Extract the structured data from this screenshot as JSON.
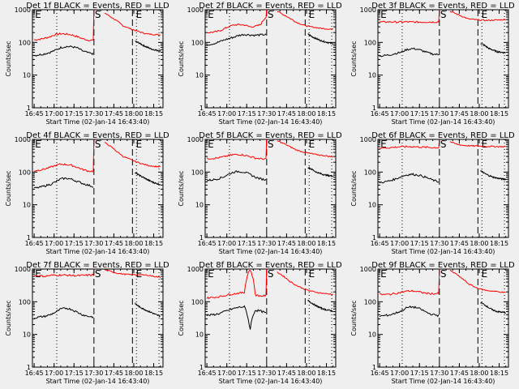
{
  "chart_data": {
    "type": "line",
    "layout": "3x3 grid",
    "shared": {
      "xlabel": "Start Time (02-Jan-14 16:43:40)",
      "ylabel": "Counts/sec",
      "yscale": "log",
      "ylim": [
        1,
        1000
      ],
      "ytick_labels": [
        "1",
        "10",
        "100",
        "1000"
      ],
      "xlim_minutes_after_1645": [
        -1.3,
        97
      ],
      "xtick_labels": [
        "16:45",
        "17:00",
        "17:15",
        "17:30",
        "17:45",
        "18:00",
        "18:15"
      ],
      "series_colors": {
        "events": "#000000",
        "lld": "#ff0000"
      },
      "legend": "encoded in title",
      "markers": [
        {
          "label": "E",
          "time": "16:45",
          "style": "dotted-start"
        },
        {
          "label": "S",
          "time": "17:30",
          "style": "dashed"
        },
        {
          "label": "E",
          "time": "18:01",
          "style": "dotted"
        }
      ],
      "dotted_lines": [
        "17:02",
        "18:02",
        "18:19"
      ],
      "dashed_lines": [
        "17:30",
        "17:59"
      ]
    },
    "panels": [
      {
        "title": "Det 1f BLACK = Events, RED = LLD",
        "events": {
          "pre": [
            40,
            42,
            45,
            50,
            58,
            70,
            75,
            74,
            68,
            55,
            48,
            45
          ],
          "post": [
            110,
            95,
            80,
            70,
            62,
            58,
            55
          ]
        },
        "lld": {
          "pre": [
            120,
            125,
            135,
            150,
            175,
            185,
            180,
            170,
            150,
            130,
            118,
            115
          ],
          "post_start": 1000,
          "post": [
            800,
            600,
            450,
            320,
            270,
            230,
            200,
            180,
            175,
            170
          ]
        }
      },
      {
        "title": "Det 2f BLACK = Events, RED = LLD",
        "events": {
          "pre": [
            85,
            90,
            100,
            115,
            130,
            145,
            165,
            175,
            170,
            165,
            170,
            175
          ],
          "post": [
            180,
            150,
            130,
            115,
            105,
            98,
            92
          ]
        },
        "lld": {
          "pre": [
            200,
            205,
            215,
            250,
            300,
            340,
            350,
            340,
            300,
            310,
            350,
            600
          ],
          "post_start": 1000,
          "post": [
            900,
            700,
            550,
            420,
            350,
            310,
            290,
            270,
            260,
            255
          ]
        }
      },
      {
        "title": "Det 3f BLACK = Events, RED = LLD",
        "events": {
          "pre": [
            38,
            40,
            42,
            46,
            50,
            60,
            65,
            62,
            55,
            48,
            44,
            42
          ],
          "post": [
            95,
            80,
            65,
            58,
            52,
            50,
            48
          ]
        },
        "lld": {
          "pre": [
            420,
            420,
            425,
            420,
            420,
            425,
            420,
            418,
            420,
            422,
            420,
            430
          ],
          "post_start": 1000,
          "post": [
            900,
            750,
            620,
            520,
            500,
            480,
            470,
            480,
            490,
            500
          ]
        }
      },
      {
        "title": "Det 4f BLACK = Events, RED = LLD",
        "events": {
          "pre": [
            32,
            34,
            38,
            42,
            50,
            62,
            65,
            60,
            52,
            45,
            40,
            36
          ],
          "post": [
            95,
            80,
            68,
            58,
            50,
            45,
            42
          ]
        },
        "lld": {
          "pre": [
            110,
            115,
            125,
            140,
            160,
            175,
            170,
            160,
            140,
            120,
            108,
            105
          ],
          "post_start": 1000,
          "post": [
            800,
            600,
            420,
            300,
            250,
            210,
            180,
            160,
            150,
            145
          ]
        }
      },
      {
        "title": "Det 5f BLACK = Events, RED = LLD",
        "events": {
          "pre": [
            55,
            58,
            62,
            70,
            85,
            100,
            105,
            100,
            85,
            70,
            62,
            58
          ],
          "post": [
            140,
            120,
            100,
            90,
            82,
            78,
            75
          ]
        },
        "lld": {
          "pre": [
            260,
            262,
            270,
            290,
            320,
            340,
            345,
            330,
            300,
            270,
            255,
            250
          ],
          "post_start": 1000,
          "post": [
            900,
            750,
            600,
            480,
            420,
            380,
            350,
            330,
            310,
            290
          ]
        }
      },
      {
        "title": "Det 6f BLACK = Events, RED = LLD",
        "events": {
          "pre": [
            48,
            50,
            55,
            62,
            72,
            82,
            86,
            82,
            75,
            65,
            56,
            50
          ],
          "post": [
            110,
            90,
            78,
            70,
            65,
            62,
            60
          ]
        },
        "lld": {
          "pre": [
            550,
            550,
            560,
            580,
            600,
            600,
            600,
            590,
            580,
            570,
            560,
            560
          ],
          "post_start": 1000,
          "post": [
            850,
            720,
            660,
            640,
            630,
            620,
            610,
            610,
            600,
            600
          ]
        }
      },
      {
        "title": "Det 7f BLACK = Events, RED = LLD",
        "events": {
          "pre": [
            32,
            34,
            36,
            40,
            48,
            60,
            64,
            58,
            48,
            40,
            36,
            34
          ],
          "post": [
            88,
            70,
            60,
            52,
            46,
            40,
            36
          ]
        },
        "lld": {
          "pre": [
            620,
            630,
            600,
            640,
            650,
            660,
            650,
            640,
            630,
            640,
            650,
            660
          ],
          "post_start": 1000,
          "post": [
            950,
            850,
            750,
            700,
            680,
            670,
            660,
            650,
            600,
            560
          ]
        }
      },
      {
        "title": "Det 8f BLACK = Events, RED = LLD",
        "events": {
          "pre": [
            38,
            40,
            42,
            48,
            55,
            62,
            68,
            70,
            12,
            55,
            52,
            45
          ],
          "post": [
            110,
            90,
            75,
            65,
            58,
            55,
            52
          ]
        },
        "lld": {
          "pre": [
            130,
            135,
            140,
            150,
            165,
            175,
            185,
            190,
            1000,
            160,
            150,
            155
          ],
          "post_start": 1000,
          "post": [
            800,
            600,
            420,
            320,
            260,
            220,
            200,
            185,
            175,
            170
          ]
        }
      },
      {
        "title": "Det 9f BLACK = Events, RED = LLD",
        "events": {
          "pre": [
            36,
            38,
            40,
            45,
            52,
            65,
            70,
            65,
            55,
            45,
            40,
            38
          ],
          "post": [
            95,
            80,
            65,
            55,
            50,
            48,
            46
          ]
        },
        "lld": {
          "pre": [
            170,
            165,
            170,
            180,
            195,
            210,
            215,
            205,
            190,
            180,
            175,
            180
          ],
          "post_start": 1000,
          "post": [
            900,
            700,
            500,
            350,
            280,
            240,
            220,
            210,
            200,
            190
          ]
        }
      }
    ]
  }
}
